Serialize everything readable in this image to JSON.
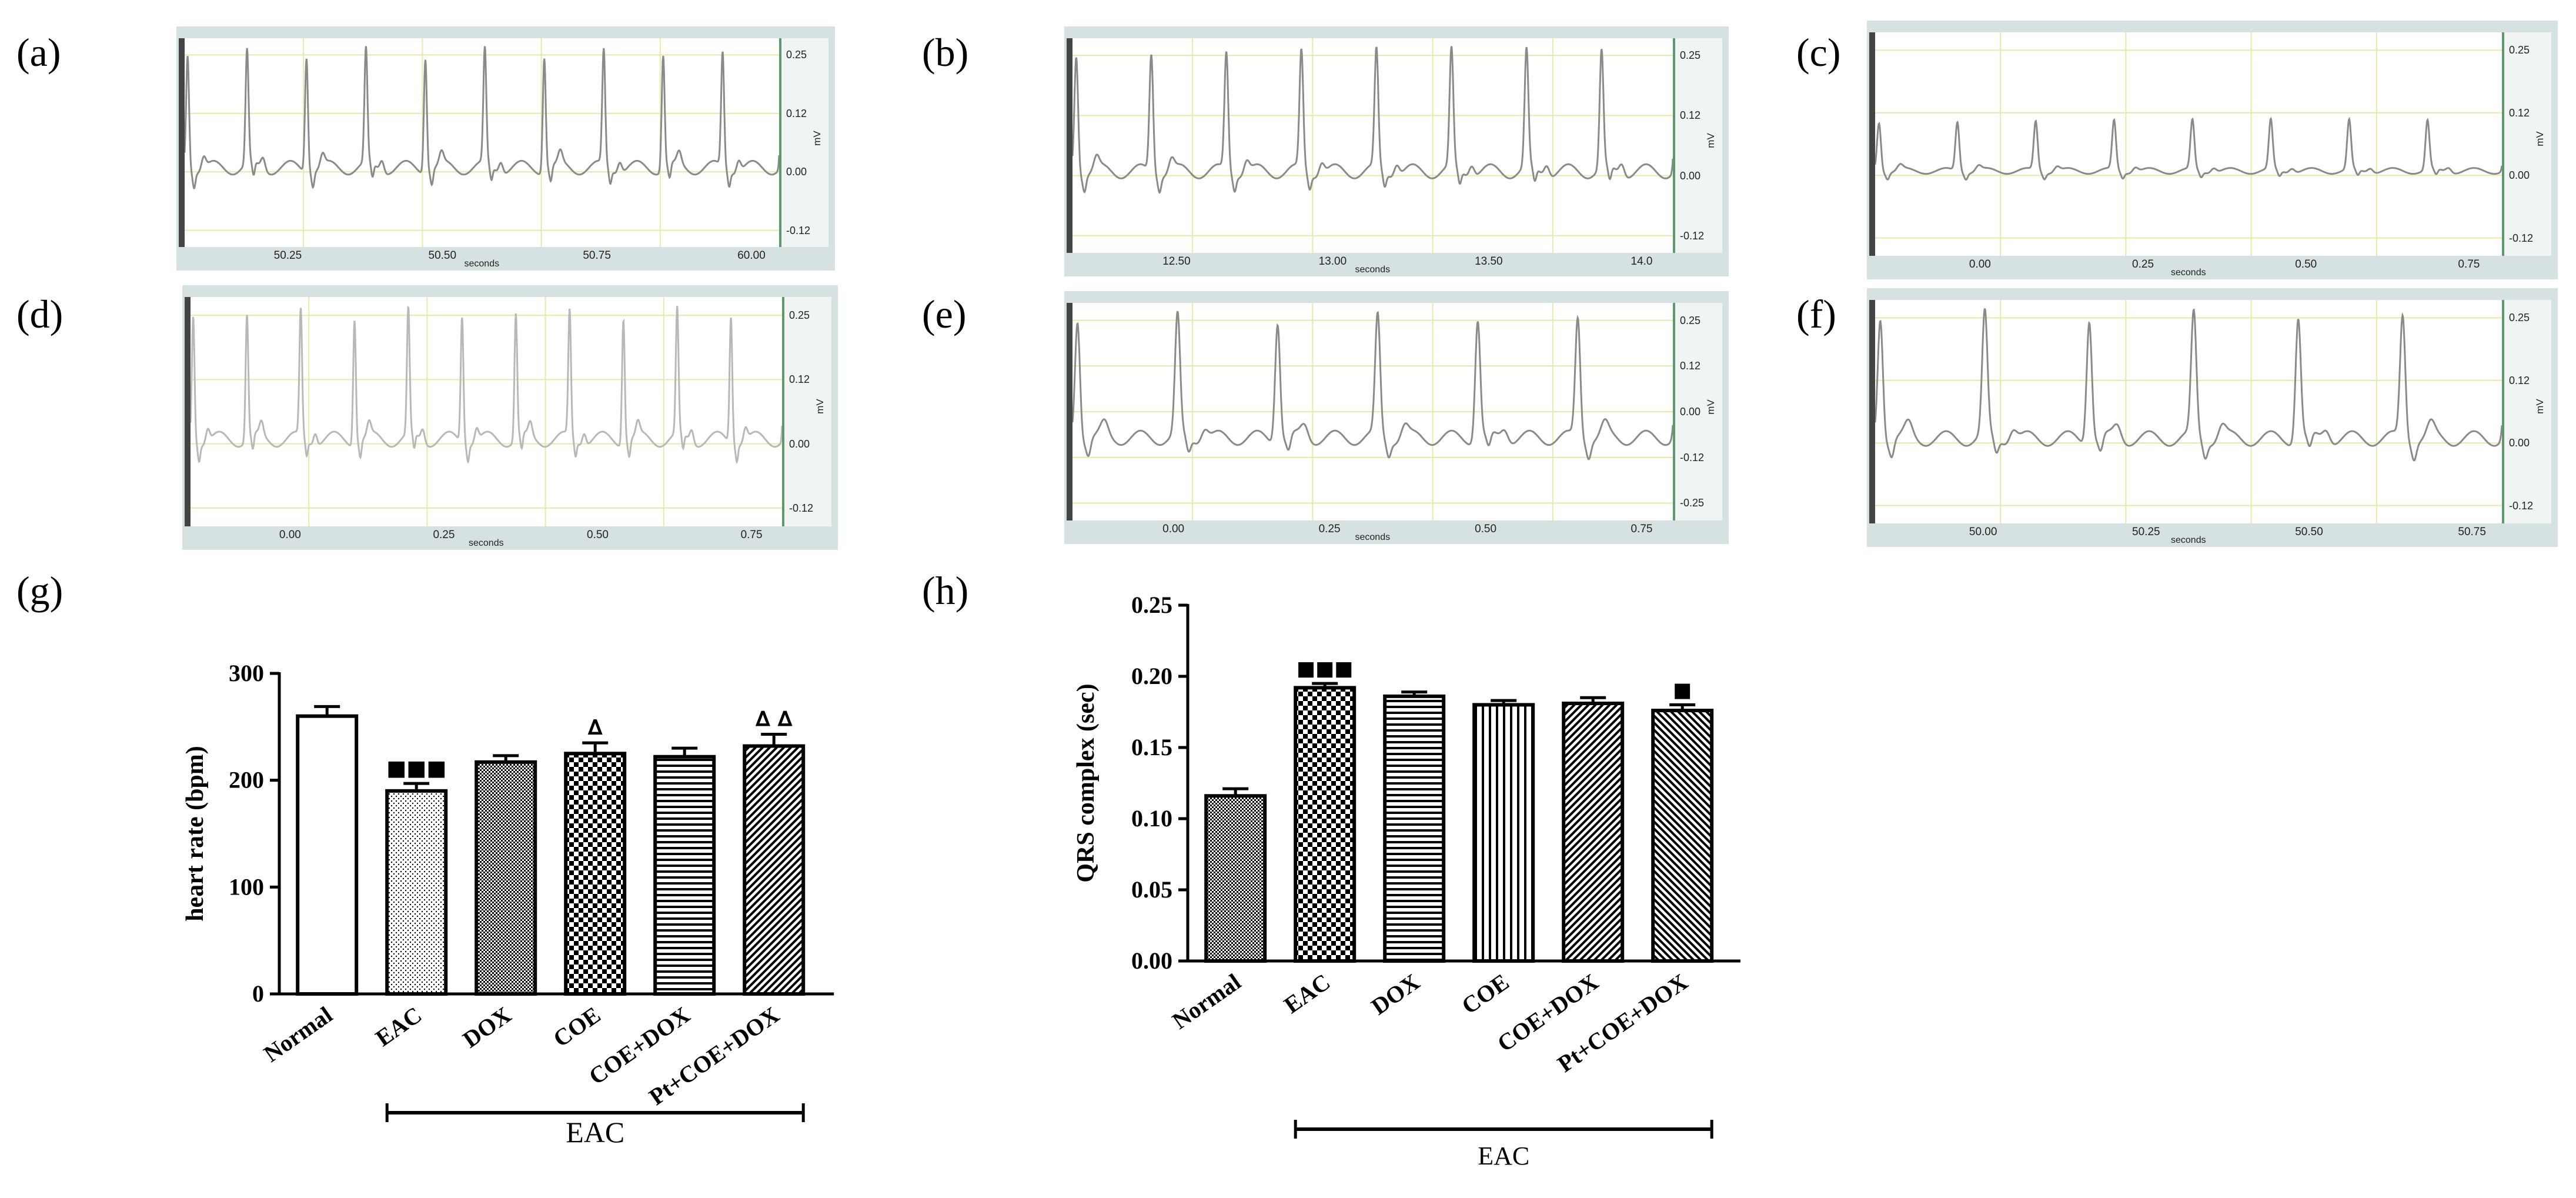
{
  "panel_labels": {
    "a": "(a)",
    "b": "(b)",
    "c": "(c)",
    "d": "(d)",
    "e": "(e)",
    "f": "(f)",
    "g": "(g)",
    "h": "(h)"
  },
  "ecg_panels": [
    {
      "id": "a",
      "yticks": [
        "0.25",
        "0.12",
        "0.00",
        "-0.12"
      ],
      "yunit": "mV",
      "xticks": [
        "50.25",
        "50.50",
        "50.75",
        "60.00"
      ],
      "xunit": "seconds",
      "beats": 10
    },
    {
      "id": "b",
      "yticks": [
        "0.25",
        "0.12",
        "0.00",
        "-0.12"
      ],
      "yunit": "mV",
      "xticks": [
        "12.50",
        "13.00",
        "13.50",
        "14.0"
      ],
      "xunit": "seconds",
      "beats": 8
    },
    {
      "id": "c",
      "yticks": [
        "0.25",
        "0.12",
        "0.00",
        "-0.12"
      ],
      "yunit": "mV",
      "xticks": [
        "0.00",
        "0.25",
        "0.50",
        "0.75"
      ],
      "xunit": "seconds",
      "beats": 8
    },
    {
      "id": "d",
      "yticks": [
        "0.25",
        "0.12",
        "0.00",
        "-0.12"
      ],
      "yunit": "mV",
      "xticks": [
        "0.00",
        "0.25",
        "0.50",
        "0.75"
      ],
      "xunit": "seconds",
      "beats": 11
    },
    {
      "id": "e",
      "yticks": [
        "0.25",
        "0.12",
        "0.00",
        "-0.12",
        "-0.25"
      ],
      "yunit": "mV",
      "xticks": [
        "0.00",
        "0.25",
        "0.50",
        "0.75"
      ],
      "xunit": "seconds",
      "beats": 6
    },
    {
      "id": "f",
      "yticks": [
        "0.25",
        "0.12",
        "0.00",
        "-0.12"
      ],
      "yunit": "mV",
      "xticks": [
        "50.00",
        "50.25",
        "50.50",
        "50.75"
      ],
      "xunit": "seconds",
      "beats": 6
    }
  ],
  "chart_data": [
    {
      "id": "g",
      "type": "bar",
      "ylabel": "heart rate (bpm)",
      "ylim": [
        0,
        300
      ],
      "yticks": [
        0,
        100,
        200,
        300
      ],
      "categories": [
        "Normal",
        "EAC",
        "DOX",
        "COE",
        "COE+DOX",
        "Pt+COE+DOX"
      ],
      "values": [
        260,
        190,
        217,
        225,
        222,
        232
      ],
      "errors": [
        9,
        7,
        6,
        10,
        8,
        11
      ],
      "annotations": [
        "",
        "■■■",
        "",
        "∆",
        "",
        "∆ ∆"
      ],
      "bracket_label": "EAC",
      "bracket_from": 1,
      "bracket_to": 5
    },
    {
      "id": "h",
      "type": "bar",
      "ylabel": "QRS complex (sec)",
      "ylim": [
        0,
        0.25
      ],
      "yticks": [
        "0.00",
        "0.05",
        "0.10",
        "0.15",
        "0.20",
        "0.25"
      ],
      "categories": [
        "Normal",
        "EAC",
        "DOX",
        "COE",
        "COE+DOX",
        "Pt+COE+DOX"
      ],
      "values": [
        0.116,
        0.192,
        0.186,
        0.18,
        0.181,
        0.176
      ],
      "errors": [
        0.005,
        0.003,
        0.003,
        0.003,
        0.004,
        0.004
      ],
      "annotations": [
        "",
        "■■■",
        "",
        "",
        "",
        "■"
      ],
      "bracket_label": "EAC",
      "bracket_from": 1,
      "bracket_to": 5
    }
  ]
}
